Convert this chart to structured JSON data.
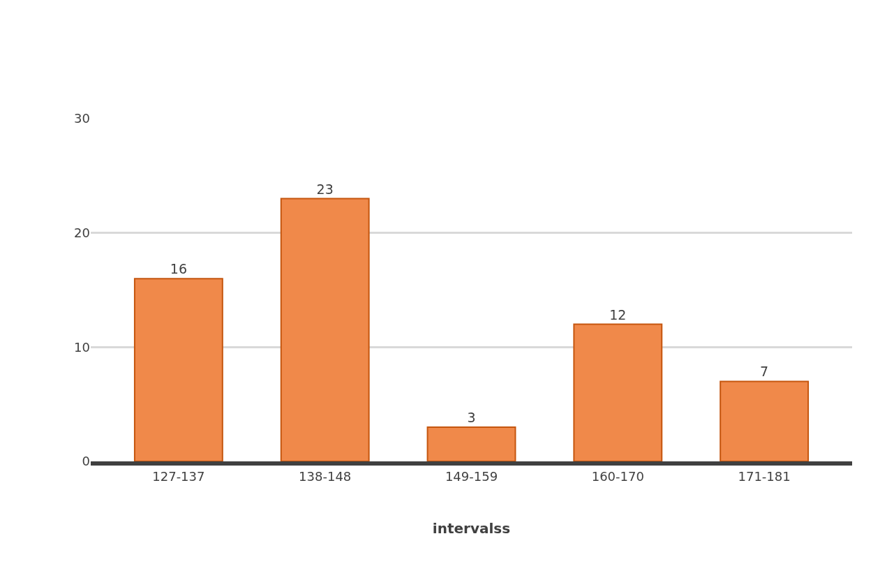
{
  "chart_data": {
    "type": "bar",
    "xlabel": "intervalss",
    "categories": [
      "127-137",
      "138-148",
      "149-159",
      "160-170",
      "171-181"
    ],
    "values": [
      16,
      23,
      3,
      12,
      7
    ],
    "color": "#f0894a",
    "ylim": [
      0,
      30
    ],
    "yticks": [
      0,
      10,
      20,
      30
    ],
    "grid": "y",
    "data_labels": true
  }
}
